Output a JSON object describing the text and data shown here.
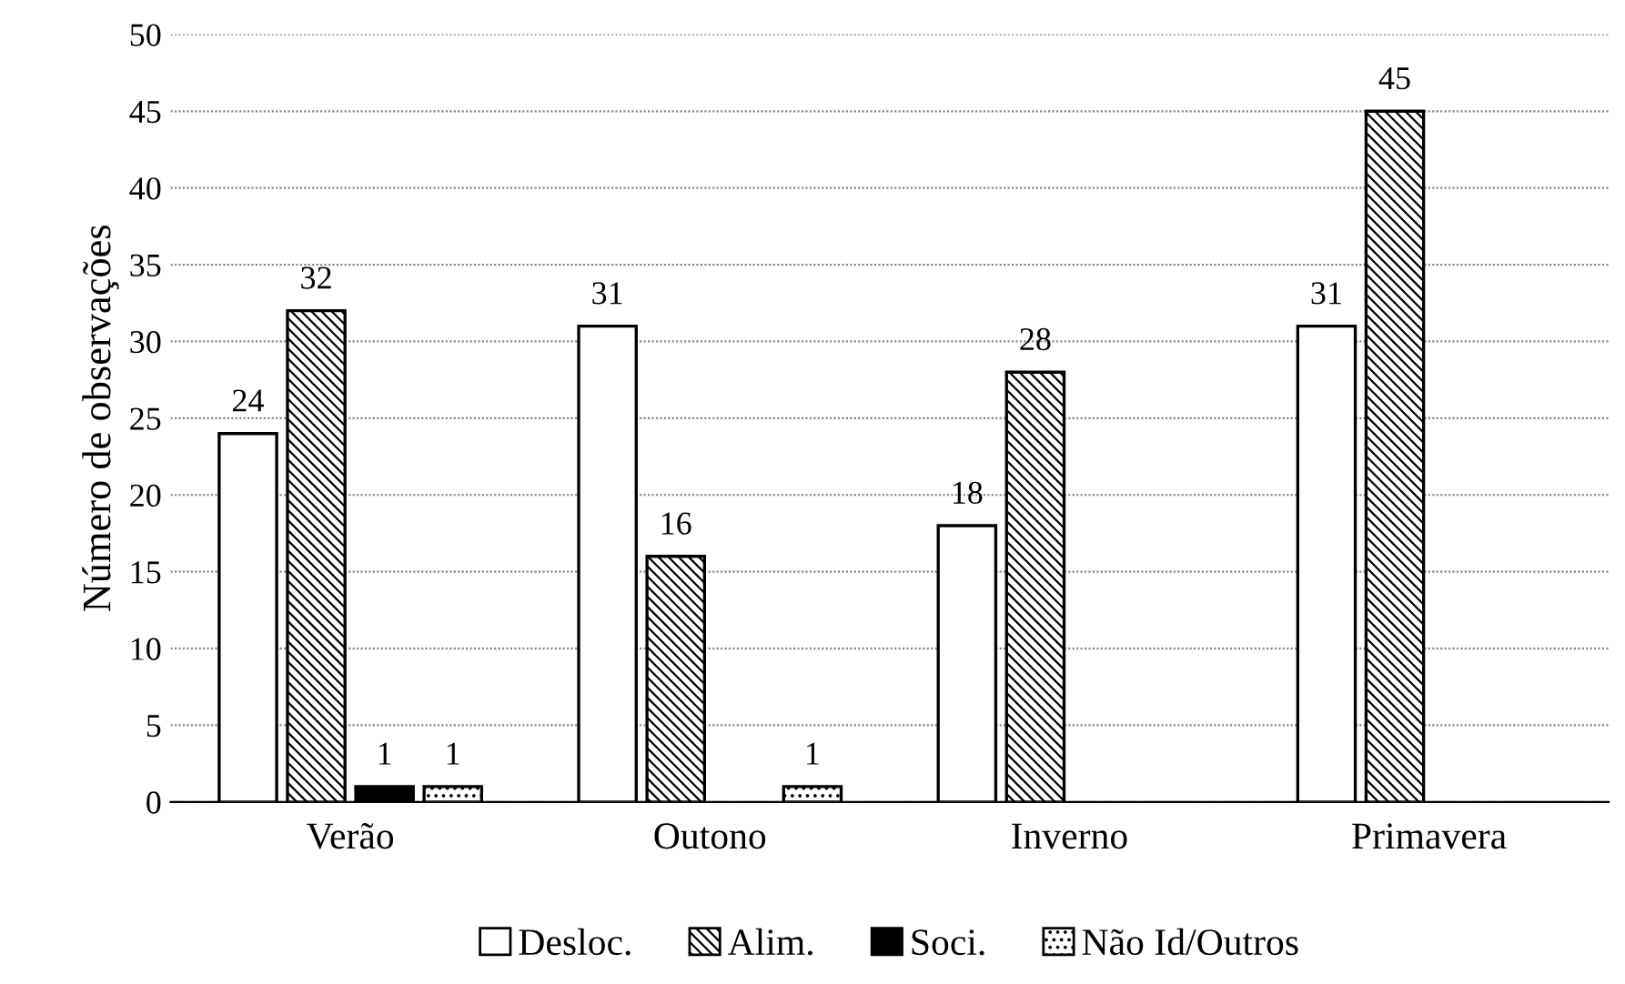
{
  "chart_data": {
    "type": "bar",
    "ylabel": "Número de observações",
    "categories": [
      "Verão",
      "Outono",
      "Inverno",
      "Primavera"
    ],
    "series": [
      {
        "name": "Desloc.",
        "color": "#ffffff",
        "values": [
          24,
          31,
          18,
          31
        ]
      },
      {
        "name": "Alim.",
        "color": "#000000",
        "values": [
          32,
          16,
          28,
          45
        ]
      },
      {
        "name": "Soci.",
        "color": "#000000",
        "values": [
          1,
          null,
          null,
          null
        ]
      },
      {
        "name": "Não Id/Outros",
        "color": "#000000",
        "values": [
          1,
          1,
          null,
          null
        ]
      }
    ],
    "ylim": [
      0,
      50
    ],
    "yticks": [
      0,
      5,
      10,
      15,
      20,
      25,
      30,
      35,
      40,
      45,
      50
    ],
    "grid": "y",
    "legend": "bottom",
    "data_labels": true
  }
}
